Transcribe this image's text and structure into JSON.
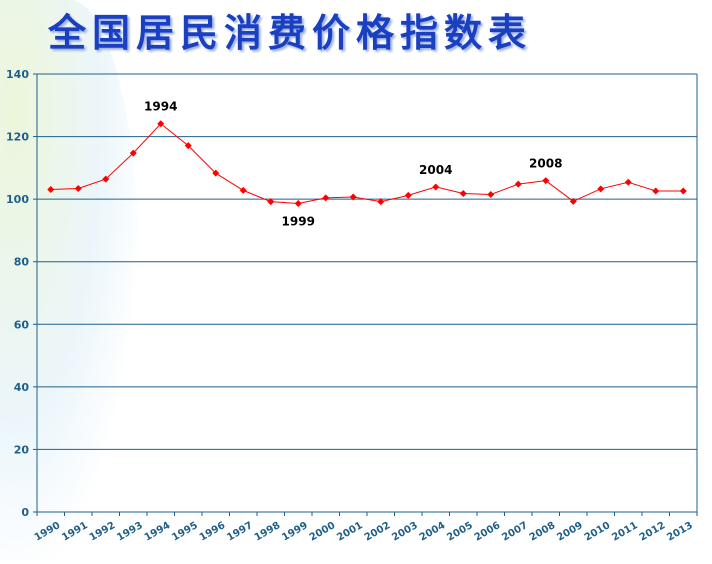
{
  "title": "全国居民消费价格指数表",
  "chart_data": {
    "type": "line",
    "title": "全国居民消费价格指数表",
    "categories": [
      "1990",
      "1991",
      "1992",
      "1993",
      "1994",
      "1995",
      "1996",
      "1997",
      "1998",
      "1999",
      "2000",
      "2001",
      "2002",
      "2003",
      "2004",
      "2005",
      "2006",
      "2007",
      "2008",
      "2009",
      "2010",
      "2011",
      "2012",
      "2013"
    ],
    "values": [
      103.1,
      103.4,
      106.4,
      114.7,
      124.1,
      117.1,
      108.3,
      102.8,
      99.2,
      98.6,
      100.4,
      100.7,
      99.2,
      101.2,
      103.9,
      101.8,
      101.5,
      104.8,
      105.9,
      99.3,
      103.3,
      105.4,
      102.6,
      102.6
    ],
    "ylim": [
      0,
      140
    ],
    "yticks": [
      "0",
      "20",
      "40",
      "60",
      "80",
      "100",
      "120",
      "140"
    ],
    "grid": true,
    "annotations": [
      {
        "label": "1994",
        "year": "1994",
        "position": "above"
      },
      {
        "label": "1999",
        "year": "1999",
        "position": "below"
      },
      {
        "label": "2004",
        "year": "2004",
        "position": "above"
      },
      {
        "label": "2008",
        "year": "2008",
        "position": "above"
      }
    ],
    "colors": {
      "line": "#ff0000",
      "axis": "#1f5f8b",
      "tick_label": "#1f5f8b",
      "title": "#1a3fc0"
    }
  }
}
